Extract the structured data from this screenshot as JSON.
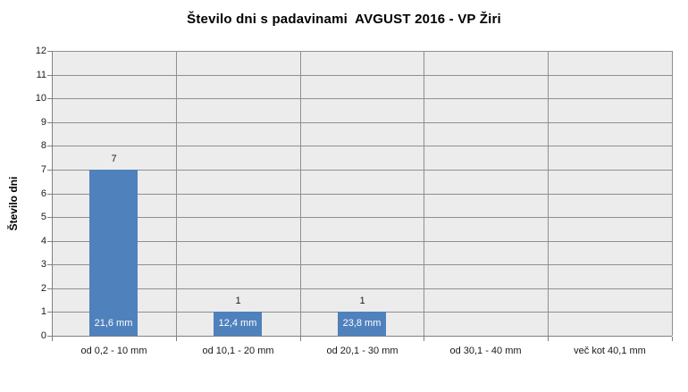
{
  "chart_data": {
    "type": "bar",
    "title": "Število dni s padavinami  AVGUST 2016 - VP Žiri",
    "xlabel": "",
    "ylabel": "Število dni",
    "categories": [
      "od 0,2 - 10 mm",
      "od 10,1 - 20 mm",
      "od 20,1 - 30 mm",
      "od 30,1 - 40 mm",
      "več kot 40,1 mm"
    ],
    "values": [
      7,
      1,
      1,
      0,
      0
    ],
    "bar_value_labels": [
      "7",
      "1",
      "1",
      "",
      ""
    ],
    "bar_inner_labels": [
      "21,6 mm",
      "12,4 mm",
      "23,8 mm",
      "",
      ""
    ],
    "ylim": [
      0,
      12
    ],
    "ytick_step": 1,
    "grid": "horizontal gridlines every 1 unit, vertical lines at category boundaries",
    "legend_position": "none",
    "colors": {
      "bar": "#4F81BD",
      "plot_background": "#ECECEC",
      "gridline": "#8F8F8F",
      "axis": "#808080",
      "inner_label_text": "#FFFFFF",
      "text": "#1A1A1A",
      "page_background": "#FFFFFF"
    }
  }
}
